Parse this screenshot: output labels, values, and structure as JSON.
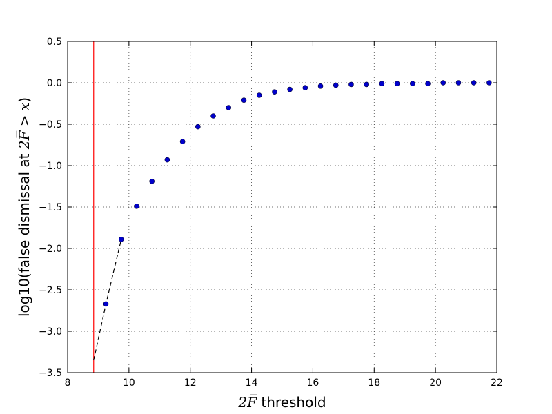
{
  "chart_data": {
    "type": "scatter",
    "title": "",
    "xlabel_math": "2F̅",
    "xlabel_text": " threshold",
    "ylabel_prefix": "log10(false dismissal at ",
    "ylabel_math": "2F̅ > x",
    "ylabel_suffix": ")",
    "xlim": [
      8,
      22
    ],
    "ylim": [
      -3.5,
      0.5
    ],
    "xticks": [
      8,
      10,
      12,
      14,
      16,
      18,
      20,
      22
    ],
    "yticks": [
      0.5,
      0.0,
      -0.5,
      -1.0,
      -1.5,
      -2.0,
      -2.5,
      -3.0,
      -3.5
    ],
    "xtick_labels": [
      "8",
      "10",
      "12",
      "14",
      "16",
      "18",
      "20",
      "22"
    ],
    "ytick_labels": [
      "0.5",
      "0.0",
      "−0.5",
      "−1.0",
      "−1.5",
      "−2.0",
      "−2.5",
      "−3.0",
      "−3.5"
    ],
    "grid": true,
    "vline": {
      "x": 8.85,
      "color": "#ff0000"
    },
    "series": [
      {
        "type": "scatter",
        "color": "#0000cc",
        "x": [
          9.25,
          9.75,
          10.25,
          10.75,
          11.25,
          11.75,
          12.25,
          12.75,
          13.25,
          13.75,
          14.25,
          14.75,
          15.25,
          15.75,
          16.25,
          16.75,
          17.25,
          17.75,
          18.25,
          18.75,
          19.25,
          19.75,
          20.25,
          20.75,
          21.25,
          21.75
        ],
        "y": [
          -2.67,
          -1.89,
          -1.49,
          -1.19,
          -0.93,
          -0.71,
          -0.53,
          -0.4,
          -0.3,
          -0.21,
          -0.15,
          -0.11,
          -0.08,
          -0.06,
          -0.04,
          -0.03,
          -0.02,
          -0.02,
          -0.01,
          -0.01,
          -0.01,
          -0.01,
          0.0,
          0.0,
          0.0,
          0.0
        ]
      },
      {
        "type": "dashed-line",
        "color": "#000000",
        "x": [
          8.85,
          9.25,
          9.75
        ],
        "y": [
          -3.35,
          -2.67,
          -1.89
        ]
      }
    ]
  }
}
